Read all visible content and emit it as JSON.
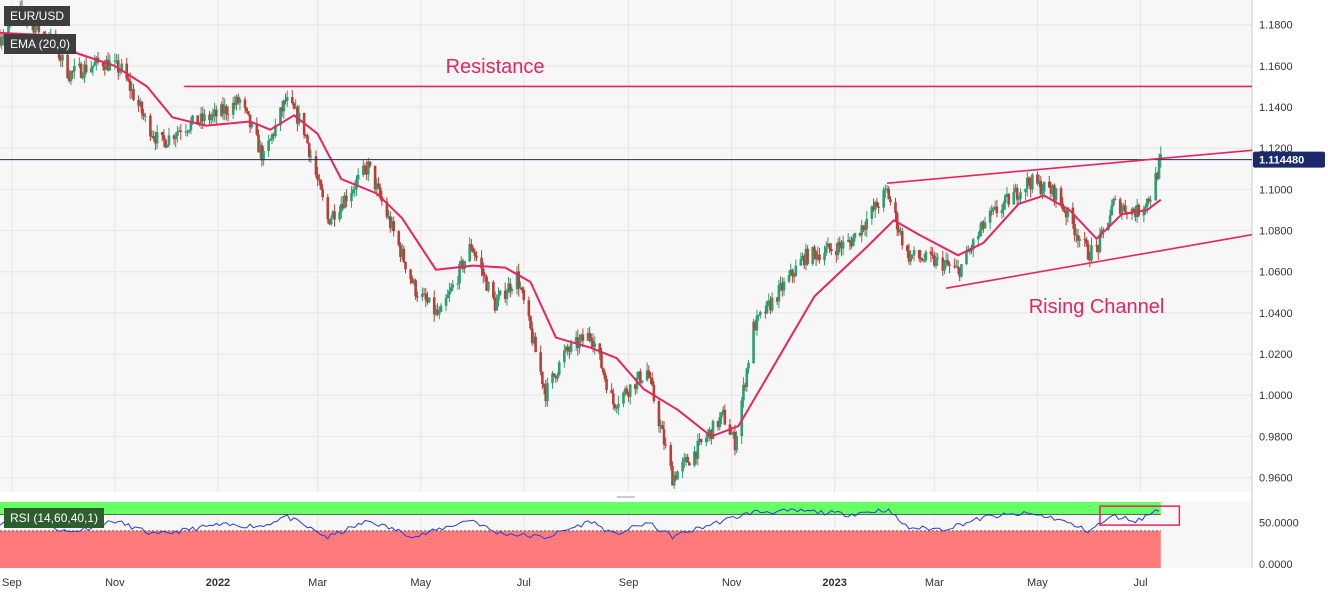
{
  "legend": {
    "symbol": "EUR/USD",
    "ema": "EMA (20,0)",
    "rsi": "RSI (14,60,40,1)"
  },
  "colors": {
    "bull": "#2e9e6e",
    "bear": "#b5413a",
    "ema": "#e8245f",
    "annotation": "#e8245f",
    "rsi_line": "#2b3cd6",
    "rsi_upper_zone": "#66ff66",
    "rsi_lower_zone": "#ff7a7a",
    "price_line": "#1a2a6c"
  },
  "chart_data": {
    "type": "candlestick",
    "title": "EUR/USD",
    "ylim": [
      0.953,
      1.192
    ],
    "yticks": [
      "1.1800",
      "1.1600",
      "1.1400",
      "1.1200",
      "1.1000",
      "1.0800",
      "1.0600",
      "1.0400",
      "1.0200",
      "1.0000",
      "0.9800",
      "0.9600"
    ],
    "last_price": "1.114480",
    "x_tick_labels": [
      "Sep",
      "Nov",
      "2022",
      "Mar",
      "May",
      "Jul",
      "Sep",
      "Nov",
      "2023",
      "Mar",
      "May",
      "Jul"
    ],
    "x_tick_dates": [
      "2021-09-01",
      "2021-11-01",
      "2022-01-01",
      "2022-03-01",
      "2022-05-01",
      "2022-07-01",
      "2022-09-01",
      "2022-11-01",
      "2023-01-01",
      "2023-03-01",
      "2023-05-01",
      "2023-07-01"
    ],
    "xlim": [
      "2021-08-25",
      "2023-09-05"
    ],
    "close_path": [
      [
        "2021-08-25",
        1.174
      ],
      [
        "2021-09-05",
        1.186
      ],
      [
        "2021-09-25",
        1.172
      ],
      [
        "2021-10-05",
        1.156
      ],
      [
        "2021-10-25",
        1.162
      ],
      [
        "2021-11-05",
        1.158
      ],
      [
        "2021-11-20",
        1.132
      ],
      [
        "2021-11-28",
        1.122
      ],
      [
        "2021-12-10",
        1.13
      ],
      [
        "2021-12-31",
        1.136
      ],
      [
        "2022-01-14",
        1.143
      ],
      [
        "2022-01-28",
        1.115
      ],
      [
        "2022-02-10",
        1.143
      ],
      [
        "2022-02-20",
        1.132
      ],
      [
        "2022-03-07",
        1.085
      ],
      [
        "2022-03-31",
        1.111
      ],
      [
        "2022-04-28",
        1.051
      ],
      [
        "2022-05-12",
        1.038
      ],
      [
        "2022-05-31",
        1.073
      ],
      [
        "2022-06-14",
        1.044
      ],
      [
        "2022-06-27",
        1.058
      ],
      [
        "2022-07-14",
        1.001
      ],
      [
        "2022-07-25",
        1.02
      ],
      [
        "2022-08-10",
        1.03
      ],
      [
        "2022-08-23",
        0.996
      ],
      [
        "2022-09-12",
        1.012
      ],
      [
        "2022-09-27",
        0.96
      ],
      [
        "2022-10-10",
        0.972
      ],
      [
        "2022-10-27",
        0.99
      ],
      [
        "2022-11-03",
        0.977
      ],
      [
        "2022-11-14",
        1.033
      ],
      [
        "2022-12-14",
        1.067
      ],
      [
        "2023-01-10",
        1.074
      ],
      [
        "2023-02-01",
        1.099
      ],
      [
        "2023-02-13",
        1.068
      ],
      [
        "2023-03-06",
        1.064
      ],
      [
        "2023-03-15",
        1.06
      ],
      [
        "2023-04-01",
        1.085
      ],
      [
        "2023-04-26",
        1.104
      ],
      [
        "2023-05-12",
        1.098
      ],
      [
        "2023-05-31",
        1.069
      ],
      [
        "2023-06-06",
        1.072
      ],
      [
        "2023-06-15",
        1.093
      ],
      [
        "2023-06-29",
        1.089
      ],
      [
        "2023-07-07",
        1.097
      ],
      [
        "2023-07-13",
        1.114
      ]
    ],
    "ema_path": [
      [
        "2021-08-25",
        1.176
      ],
      [
        "2021-09-20",
        1.175
      ],
      [
        "2021-10-10",
        1.166
      ],
      [
        "2021-11-01",
        1.16
      ],
      [
        "2021-11-20",
        1.15
      ],
      [
        "2021-12-05",
        1.135
      ],
      [
        "2021-12-25",
        1.131
      ],
      [
        "2022-01-20",
        1.133
      ],
      [
        "2022-02-01",
        1.129
      ],
      [
        "2022-02-15",
        1.136
      ],
      [
        "2022-03-01",
        1.127
      ],
      [
        "2022-03-15",
        1.105
      ],
      [
        "2022-04-05",
        1.098
      ],
      [
        "2022-04-20",
        1.086
      ],
      [
        "2022-05-10",
        1.061
      ],
      [
        "2022-06-01",
        1.063
      ],
      [
        "2022-06-20",
        1.062
      ],
      [
        "2022-07-05",
        1.055
      ],
      [
        "2022-07-20",
        1.028
      ],
      [
        "2022-08-10",
        1.023
      ],
      [
        "2022-08-25",
        1.018
      ],
      [
        "2022-09-10",
        1.003
      ],
      [
        "2022-09-30",
        0.993
      ],
      [
        "2022-10-20",
        0.98
      ],
      [
        "2022-11-05",
        0.985
      ],
      [
        "2022-11-25",
        1.013
      ],
      [
        "2022-12-20",
        1.048
      ],
      [
        "2023-01-20",
        1.072
      ],
      [
        "2023-02-05",
        1.085
      ],
      [
        "2023-02-20",
        1.078
      ],
      [
        "2023-03-15",
        1.068
      ],
      [
        "2023-03-30",
        1.074
      ],
      [
        "2023-04-20",
        1.093
      ],
      [
        "2023-05-05",
        1.097
      ],
      [
        "2023-05-20",
        1.09
      ],
      [
        "2023-06-05",
        1.076
      ],
      [
        "2023-06-20",
        1.088
      ],
      [
        "2023-07-05",
        1.09
      ],
      [
        "2023-07-13",
        1.095
      ]
    ],
    "annotations": [
      {
        "label": "Resistance",
        "x1": "2021-12-12",
        "y1": 1.15,
        "x2": "2023-09-05",
        "y2": 1.15,
        "label_x": "2022-06-14",
        "label_y": 1.1565
      },
      {
        "label": "",
        "x1": "2023-02-01",
        "y1": 1.103,
        "x2": "2023-09-05",
        "y2": 1.119
      },
      {
        "label": "Rising Channel",
        "x1": "2023-03-08",
        "y1": 1.052,
        "x2": "2023-09-05",
        "y2": 1.078,
        "label_x": "2023-06-05",
        "label_y": 1.04
      }
    ],
    "rsi": {
      "title": "RSI (14,60,40,1)",
      "ylim": [
        -5,
        75
      ],
      "yticks": [
        "50.0000",
        "0.0000"
      ],
      "upper_level": 60,
      "lower_level": 40,
      "path": [
        [
          "2021-08-25",
          50
        ],
        [
          "2021-09-10",
          55
        ],
        [
          "2021-10-05",
          38
        ],
        [
          "2021-11-01",
          52
        ],
        [
          "2021-11-25",
          35
        ],
        [
          "2021-12-31",
          47
        ],
        [
          "2022-01-28",
          46
        ],
        [
          "2022-02-10",
          58
        ],
        [
          "2022-03-07",
          32
        ],
        [
          "2022-03-31",
          52
        ],
        [
          "2022-04-28",
          33
        ],
        [
          "2022-05-31",
          54
        ],
        [
          "2022-06-14",
          38
        ],
        [
          "2022-07-14",
          32
        ],
        [
          "2022-08-10",
          52
        ],
        [
          "2022-08-23",
          35
        ],
        [
          "2022-09-12",
          50
        ],
        [
          "2022-09-27",
          33
        ],
        [
          "2022-10-20",
          48
        ],
        [
          "2022-11-14",
          63
        ],
        [
          "2022-12-14",
          64
        ],
        [
          "2023-01-10",
          60
        ],
        [
          "2023-02-01",
          66
        ],
        [
          "2023-02-13",
          44
        ],
        [
          "2023-03-06",
          42
        ],
        [
          "2023-04-01",
          57
        ],
        [
          "2023-04-26",
          61
        ],
        [
          "2023-05-12",
          55
        ],
        [
          "2023-05-31",
          40
        ],
        [
          "2023-06-15",
          58
        ],
        [
          "2023-06-29",
          52
        ],
        [
          "2023-07-13",
          68
        ]
      ],
      "box": {
        "x1": "2023-06-07",
        "y1": 70,
        "x2": "2023-07-24",
        "y2": 47
      }
    }
  }
}
